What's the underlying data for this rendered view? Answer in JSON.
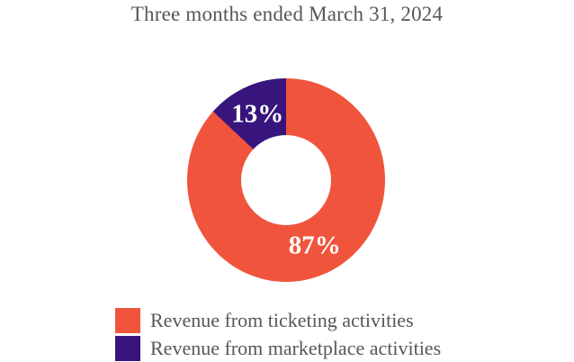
{
  "title": "Three months ended March 31, 2024",
  "chart_data": {
    "type": "pie",
    "variant": "donut",
    "title": "Three months ended March 31, 2024",
    "start_angle_deg": 0,
    "direction": "clockwise",
    "inner_radius_ratio": 0.45,
    "legend_position": "bottom-left",
    "data_label_style": "percent-inside-white-bold",
    "label_color": "#ffffff",
    "text_color": "#575757",
    "background_color": "#ffffff",
    "slices": [
      {
        "label": "Revenue from ticketing activities",
        "value": 87,
        "display": "87%",
        "color": "#f0543c"
      },
      {
        "label": "Revenue from marketplace activities",
        "value": 13,
        "display": "13%",
        "color": "#37157d"
      }
    ]
  }
}
